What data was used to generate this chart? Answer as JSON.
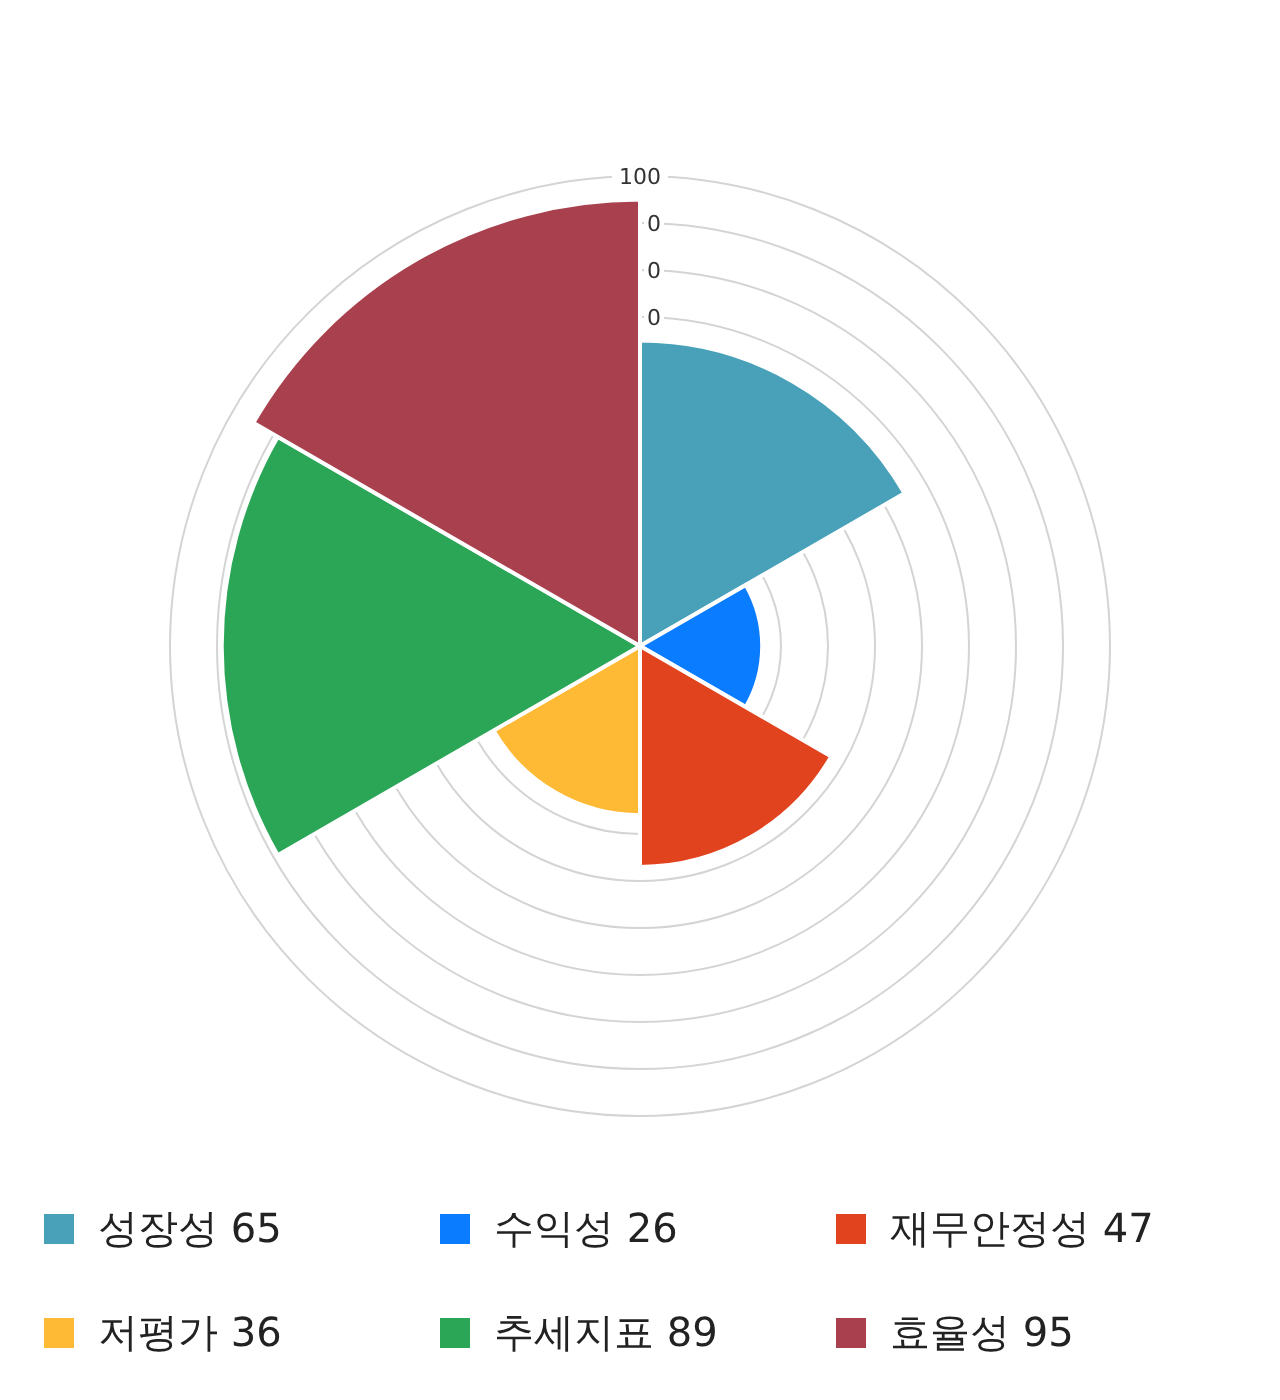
{
  "chart_data": {
    "type": "other",
    "categories": [
      "성장성",
      "수익성",
      "재무안정성",
      "저평가",
      "추세지표",
      "효율성"
    ],
    "value_labels": [
      "65",
      "26",
      "47",
      "36",
      "89",
      "95"
    ],
    "values": [
      65,
      26,
      47,
      36,
      89,
      95
    ],
    "colors": [
      "#48a1b9",
      "#0a7cff",
      "#e2431f",
      "#feb935",
      "#2ba657",
      "#a8404e"
    ],
    "annotations": [
      "100",
      "0",
      "0",
      "0"
    ]
  }
}
